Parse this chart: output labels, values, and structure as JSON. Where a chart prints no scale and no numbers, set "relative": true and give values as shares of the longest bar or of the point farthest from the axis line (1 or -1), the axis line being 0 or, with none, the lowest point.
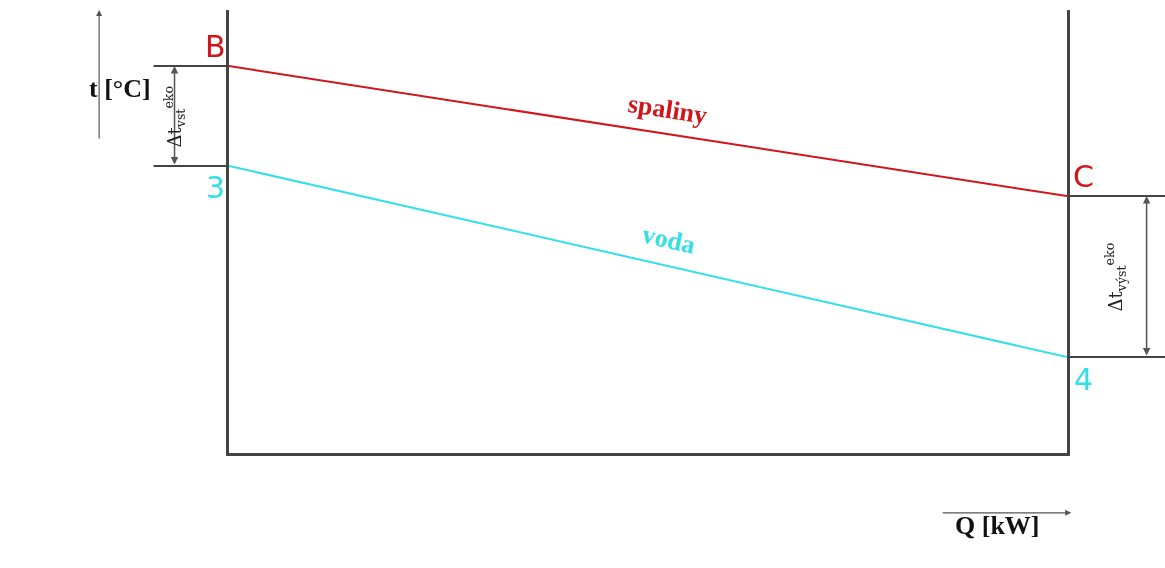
{
  "chart_data": {
    "type": "line",
    "relative": true,
    "xlabel": "Q [kW]",
    "ylabel": "t [°C]",
    "categories": [
      null,
      null
    ],
    "series": [
      {
        "name": "spaliny",
        "color": "#d0151b",
        "values": [
          1,
          0.664
        ]
      },
      {
        "name": "voda",
        "color": "#33e0e8",
        "values": [
          0.742,
          0.248
        ]
      }
    ],
    "annotations": [
      "Δt$_{vst}$$^{eko}$",
      "Δt$_{výst}$$^{eko}$",
      "B",
      "C",
      "3",
      "4"
    ],
    "legend": false,
    "marker": "none",
    "line_style": "solid"
  }
}
